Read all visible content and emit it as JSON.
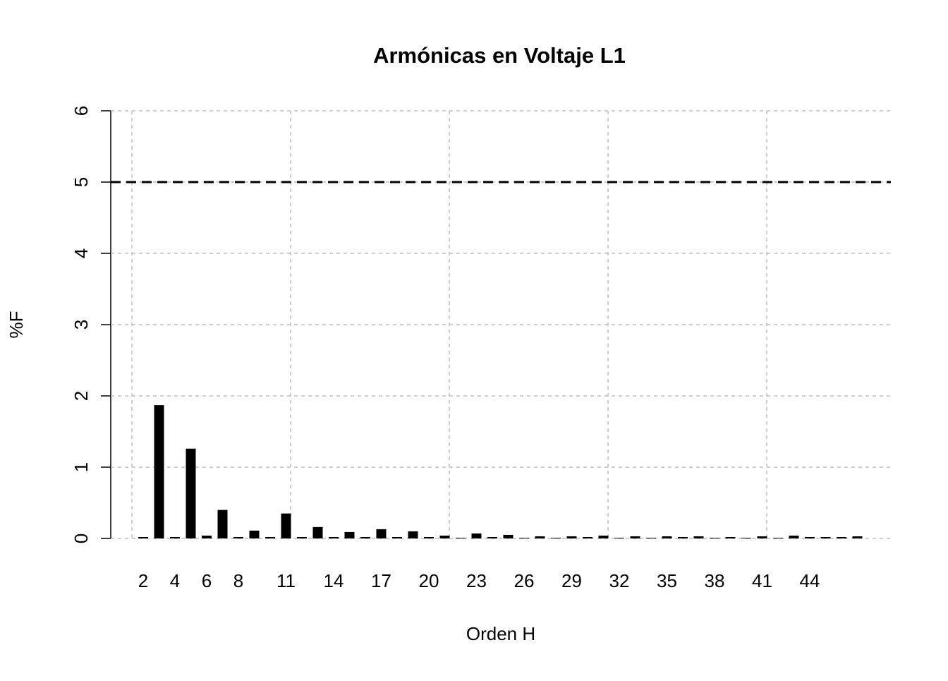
{
  "chart_data": {
    "type": "bar",
    "title": "Armónicas en Voltaje L1",
    "xlabel": "Orden H",
    "ylabel": "%F",
    "categories": [
      "2",
      null,
      "4",
      null,
      "6",
      null,
      "8",
      null,
      null,
      "11",
      null,
      null,
      "14",
      null,
      null,
      "17",
      null,
      null,
      "20",
      null,
      null,
      "23",
      null,
      null,
      "26",
      null,
      null,
      "29",
      null,
      null,
      "32",
      null,
      null,
      "35",
      null,
      null,
      "38",
      null,
      null,
      "41",
      null,
      null,
      "44",
      null,
      null,
      null
    ],
    "values": [
      0.02,
      1.87,
      0.02,
      1.26,
      0.04,
      0.4,
      0.02,
      0.11,
      0.02,
      0.35,
      0.02,
      0.16,
      0.02,
      0.09,
      0.02,
      0.13,
      0.02,
      0.1,
      0.02,
      0.04,
      0.01,
      0.07,
      0.02,
      0.05,
      0.01,
      0.03,
      0.01,
      0.03,
      0.02,
      0.04,
      0.01,
      0.03,
      0.01,
      0.03,
      0.02,
      0.03,
      0.01,
      0.02,
      0.01,
      0.03,
      0.01,
      0.04,
      0.02,
      0.02,
      0.02,
      0.03
    ],
    "color": "#000000",
    "ylim": [
      0,
      6
    ],
    "yticks": [
      0,
      1,
      2,
      3,
      4,
      5,
      6
    ],
    "grid": true,
    "reference_line": 5
  }
}
